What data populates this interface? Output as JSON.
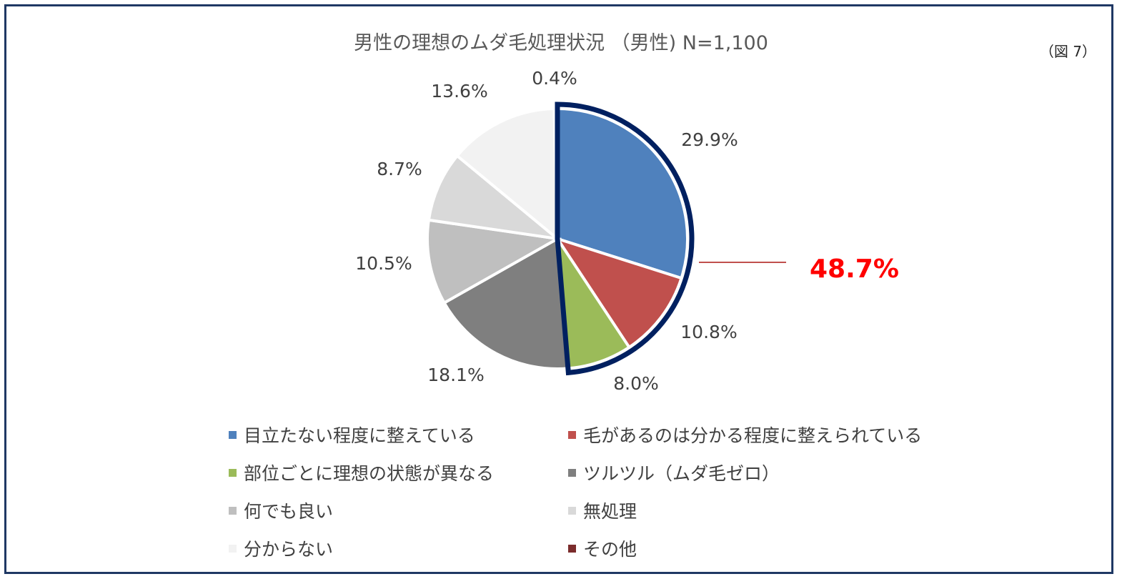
{
  "title": "男性の理想のムダ毛処理状況 （男性) N=1,100",
  "figure_label": "（図 7）",
  "highlight": {
    "label": "48.7%",
    "color": "#ff0000",
    "line_color": "#c0504d",
    "outline_color": "#002060"
  },
  "chart_data": {
    "type": "pie",
    "slices": [
      {
        "label": "目立たない程度に整えている",
        "value": 29.9,
        "value_label": "29.9%",
        "color": "#4f81bd",
        "highlighted": true
      },
      {
        "label": "毛があるのは分かる程度に整えられている",
        "value": 10.8,
        "value_label": "10.8%",
        "color": "#c0504d",
        "highlighted": true
      },
      {
        "label": "部位ごとに理想の状態が異なる",
        "value": 8.0,
        "value_label": "8.0%",
        "color": "#9bbb59",
        "highlighted": true
      },
      {
        "label": "ツルツル（ムダ毛ゼロ）",
        "value": 18.1,
        "value_label": "18.1%",
        "color": "#7f7f7f",
        "highlighted": false
      },
      {
        "label": "何でも良い",
        "value": 10.5,
        "value_label": "10.5%",
        "color": "#bfbfbf",
        "highlighted": false
      },
      {
        "label": "無処理",
        "value": 8.7,
        "value_label": "8.7%",
        "color": "#d9d9d9",
        "highlighted": false
      },
      {
        "label": "分からない",
        "value": 13.6,
        "value_label": "13.6%",
        "color": "#f2f2f2",
        "highlighted": false
      },
      {
        "label": "その他",
        "value": 0.4,
        "value_label": "0.4%",
        "color": "#7b2c2c",
        "highlighted": false
      }
    ],
    "legend_position": "bottom"
  }
}
